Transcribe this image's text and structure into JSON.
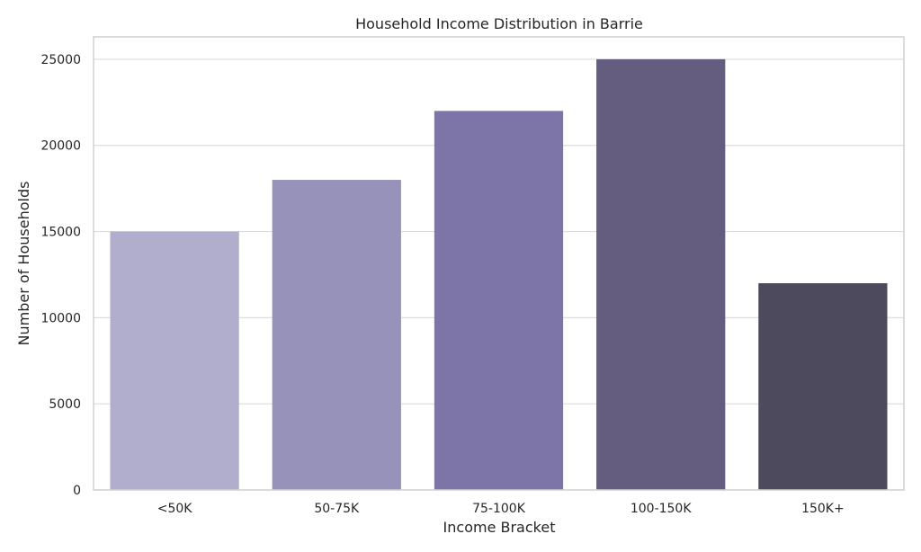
{
  "chart_data": {
    "type": "bar",
    "title": "Household Income Distribution in Barrie",
    "xlabel": "Income Bracket",
    "ylabel": "Number of Households",
    "categories": [
      "<50K",
      "50-75K",
      "75-100K",
      "100-150K",
      "150K+"
    ],
    "values": [
      15000,
      18000,
      22000,
      25000,
      12000
    ],
    "colors": [
      "#b1aecd",
      "#9792ba",
      "#7d75a8",
      "#645d7f",
      "#4d4a5e"
    ],
    "ylim": [
      0,
      26300
    ],
    "yticks": [
      0,
      5000,
      10000,
      15000,
      20000,
      25000
    ],
    "grid": true,
    "legend": "none"
  }
}
